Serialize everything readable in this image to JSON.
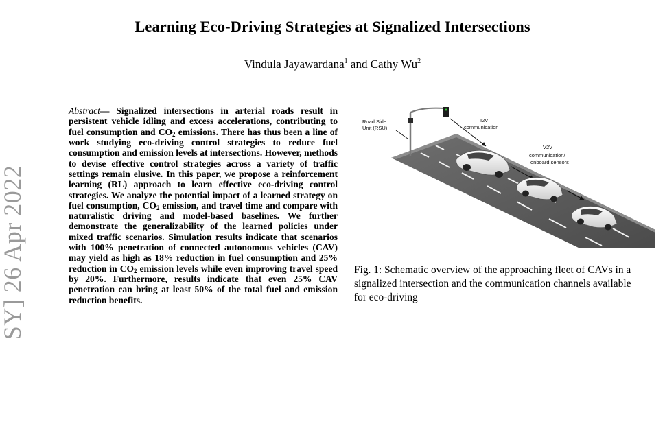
{
  "paper": {
    "title": "Learning Eco-Driving Strategies at Signalized Intersections",
    "authors": {
      "author1": "Vindula Jayawardana",
      "author1_sup": "1",
      "conjunction": " and ",
      "author2": "Cathy Wu",
      "author2_sup": "2"
    },
    "arxiv_sidebar": "SY]  26 Apr 2022",
    "abstract": {
      "label": "Abstract",
      "dash": "—",
      "part1": " Signalized intersections in arterial roads result in persistent vehicle idling and excess accelerations, contributing to fuel consumption and CO",
      "sub1": "2",
      "part2": " emissions. There has thus been a line of work studying eco-driving control strategies to reduce fuel consumption and emission levels at intersections. However, methods to devise effective control strategies across a variety of traffic settings remain elusive. In this paper, we propose a reinforcement learning (RL) approach to learn effective eco-driving control strategies. We analyze the potential impact of a learned strategy on fuel consumption, CO",
      "sub2": "2",
      "part3": " emission, and travel time and compare with naturalistic driving and model-based baselines. We further demonstrate the generalizability of the learned policies under mixed traffic scenarios. Simulation results indicate that scenarios with 100% penetration of connected autonomous vehicles (CAV) may yield as high as 18% reduction in fuel consumption and 25% reduction in CO",
      "sub3": "2",
      "part4": " emission levels while even improving travel speed by 20%. Furthermore, results indicate that even 25% CAV penetration can bring at least 50% of the total fuel and emission reduction benefits."
    },
    "figure": {
      "rsu_label_line1": "Road Side",
      "rsu_label_line2": "Unit (RSU)",
      "i2v_line1": "I2V",
      "i2v_line2": "communication",
      "v2v_line1": "V2V",
      "v2v_line2": "communication/",
      "v2v_line3": "onboard sensors",
      "caption": "Fig. 1: Schematic overview of the approaching fleet of CAVs in a signalized intersection and the communication channels available for eco-driving"
    }
  }
}
